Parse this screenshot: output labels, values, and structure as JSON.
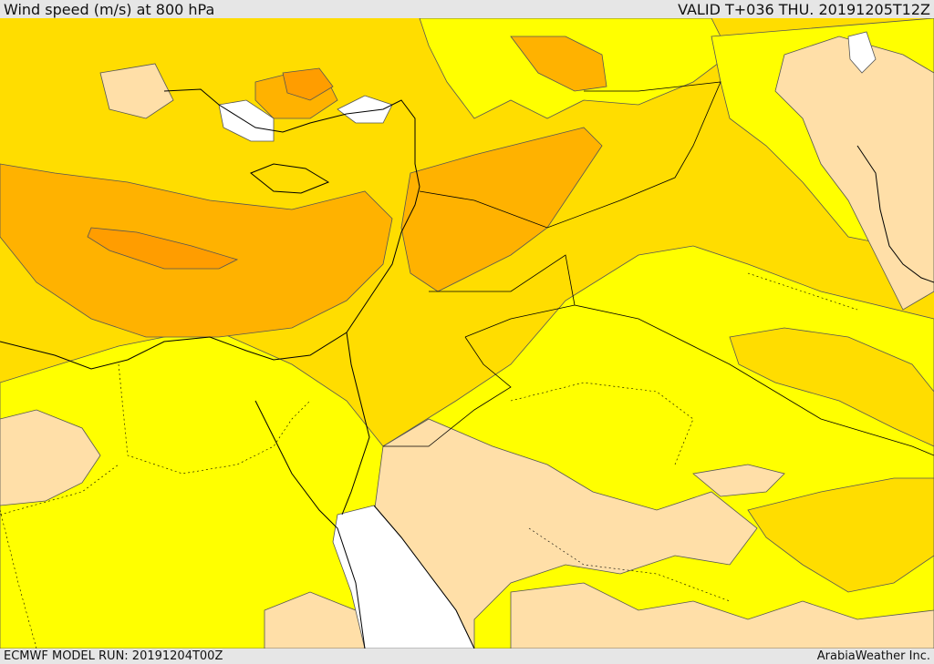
{
  "header": {
    "title": "Wind speed (m/s) at 800 hPa",
    "valid": "VALID T+036 THU. 20191205T12Z"
  },
  "footer": {
    "model_run": "ECMWF MODEL RUN: 20191204T00Z",
    "credit": "ArabiaWeather Inc."
  },
  "palette": {
    "below_lowest": "#ffffff",
    "lightest": "#ffdfa8",
    "light": "#ffff00",
    "medium": "#ffdd00",
    "strong": "#ffb200",
    "strongest": "#ff9d00",
    "sea_gap": "#ffffff",
    "contour": "#555555",
    "coast": "#000000"
  }
}
